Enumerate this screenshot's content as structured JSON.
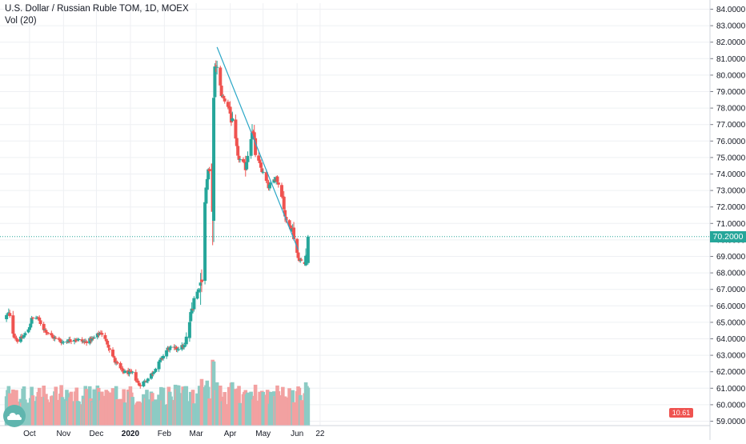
{
  "header": {
    "title": "U.S. Dollar / Russian Ruble TOM, 1D, MOEX",
    "indicator": "Vol (20)"
  },
  "colors": {
    "up": "#26a69a",
    "down": "#ef5350",
    "up_volume": "#8ccbc4",
    "down_volume": "#f2a1a1",
    "trendline": "#2aa7c7",
    "grid": "#eef0f3",
    "axis_text": "#131722"
  },
  "price_label": "70.2000",
  "volume_label": "10.61",
  "logo_icon": "tradingview-logo-icon",
  "chart_data": {
    "type": "candlestick",
    "title": "U.S. Dollar / Russian Ruble TOM, 1D, MOEX",
    "xlabel": "",
    "ylabel": "",
    "ylim": [
      58.6,
      84.6
    ],
    "yticks": [
      "84.0000",
      "83.0000",
      "82.0000",
      "81.0000",
      "80.0000",
      "79.0000",
      "78.0000",
      "77.0000",
      "76.0000",
      "75.0000",
      "74.0000",
      "73.0000",
      "72.0000",
      "71.0000",
      "70.0000",
      "69.0000",
      "68.0000",
      "67.0000",
      "66.0000",
      "65.0000",
      "64.0000",
      "63.0000",
      "62.0000",
      "61.0000",
      "60.0000",
      "59.0000"
    ],
    "xticks": [
      "Oct",
      "Nov",
      "Dec",
      "2020",
      "Feb",
      "Mar",
      "Apr",
      "May",
      "Jun",
      "22"
    ],
    "grid": true,
    "legend": "top-left",
    "current_price": 70.2,
    "close_path": [
      {
        "date": "2019-09-10",
        "close": 65.4
      },
      {
        "date": "2019-09-12",
        "close": 65.5
      },
      {
        "date": "2019-09-17",
        "close": 64.2
      },
      {
        "date": "2019-09-20",
        "close": 63.9
      },
      {
        "date": "2019-09-25",
        "close": 64.1
      },
      {
        "date": "2019-09-30",
        "close": 64.6
      },
      {
        "date": "2019-10-03",
        "close": 65.2
      },
      {
        "date": "2019-10-08",
        "close": 65.3
      },
      {
        "date": "2019-10-14",
        "close": 64.6
      },
      {
        "date": "2019-10-22",
        "close": 64.1
      },
      {
        "date": "2019-10-31",
        "close": 63.8
      },
      {
        "date": "2019-11-11",
        "close": 64.0
      },
      {
        "date": "2019-11-20",
        "close": 63.8
      },
      {
        "date": "2019-11-28",
        "close": 64.0
      },
      {
        "date": "2019-12-05",
        "close": 64.4
      },
      {
        "date": "2019-12-12",
        "close": 63.6
      },
      {
        "date": "2019-12-18",
        "close": 62.6
      },
      {
        "date": "2019-12-25",
        "close": 62.0
      },
      {
        "date": "2020-01-03",
        "close": 61.9
      },
      {
        "date": "2020-01-09",
        "close": 61.2
      },
      {
        "date": "2020-01-16",
        "close": 61.5
      },
      {
        "date": "2020-01-24",
        "close": 62.2
      },
      {
        "date": "2020-02-04",
        "close": 63.4
      },
      {
        "date": "2020-02-12",
        "close": 63.4
      },
      {
        "date": "2020-02-20",
        "close": 63.6
      },
      {
        "date": "2020-02-28",
        "close": 66.5
      },
      {
        "date": "2020-03-05",
        "close": 67.2
      },
      {
        "date": "2020-03-09",
        "close": 72.5
      },
      {
        "date": "2020-03-12",
        "close": 74.2
      },
      {
        "date": "2020-03-16",
        "close": 73.8
      },
      {
        "date": "2020-03-18",
        "close": 80.0
      },
      {
        "date": "2020-03-19",
        "close": 80.7
      },
      {
        "date": "2020-03-24",
        "close": 78.8
      },
      {
        "date": "2020-03-31",
        "close": 78.0
      },
      {
        "date": "2020-04-03",
        "close": 77.0
      },
      {
        "date": "2020-04-08",
        "close": 75.0
      },
      {
        "date": "2020-04-15",
        "close": 74.5
      },
      {
        "date": "2020-04-21",
        "close": 76.8
      },
      {
        "date": "2020-04-24",
        "close": 75.2
      },
      {
        "date": "2020-05-06",
        "close": 73.2
      },
      {
        "date": "2020-05-13",
        "close": 73.8
      },
      {
        "date": "2020-05-19",
        "close": 72.6
      },
      {
        "date": "2020-05-22",
        "close": 71.1
      },
      {
        "date": "2020-05-28",
        "close": 70.6
      },
      {
        "date": "2020-06-02",
        "close": 68.9
      },
      {
        "date": "2020-06-08",
        "close": 68.5
      },
      {
        "date": "2020-06-11",
        "close": 70.2
      }
    ],
    "trendline": {
      "start": {
        "date": "2020-03-20",
        "value": 81.7
      },
      "end": {
        "date": "2020-06-02",
        "value": 69.4
      }
    }
  }
}
